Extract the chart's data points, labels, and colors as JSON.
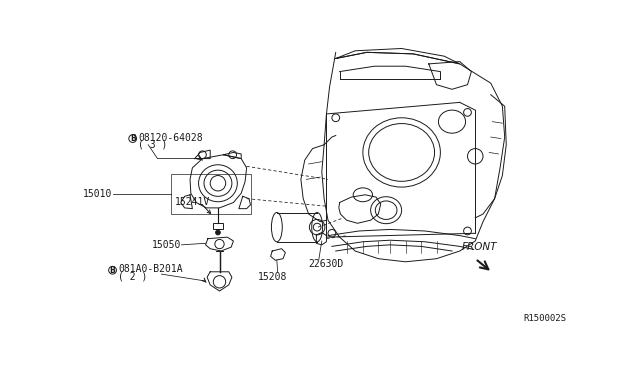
{
  "background_color": "#ffffff",
  "line_color": "#1a1a1a",
  "labels": {
    "bolt_top_num": "08120-64028",
    "bolt_top_qty": "( 3 )",
    "part_15010": "15010",
    "part_15241V": "15241V",
    "part_15050": "15050",
    "bolt_bottom_num": "081A0-B201A",
    "bolt_bottom_qty": "( 2 )",
    "part_22630D": "22630D",
    "part_15208": "15208",
    "front_label": "FRONT",
    "ref_code": "R150002S"
  }
}
